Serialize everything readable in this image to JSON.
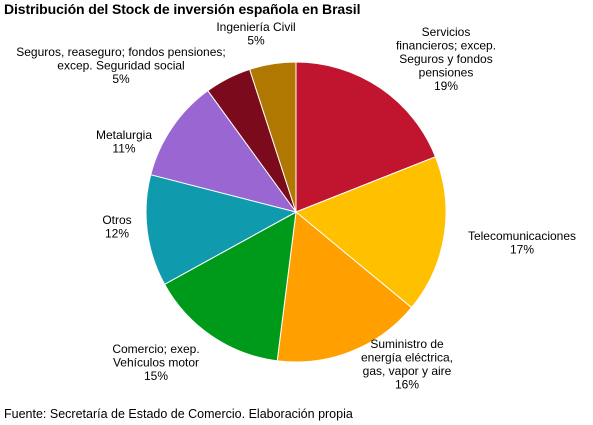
{
  "chart_data": {
    "type": "pie",
    "title": "Distribución del Stock de inversión española en Brasil",
    "source": "Fuente: Secretaría de Estado de Comercio. Elaboración propia",
    "slices": [
      {
        "lines": [
          "Servicios",
          "financieros; excep.",
          "Seguros y fondos",
          "pensiones"
        ],
        "pct_label": "19%",
        "value": 19,
        "color": "#c0142f"
      },
      {
        "lines": [
          "Telecomunicaciones"
        ],
        "pct_label": "17%",
        "value": 17,
        "color": "#ffc000"
      },
      {
        "lines": [
          "Suministro de",
          "energía eléctrica,",
          "gas, vapor y aire"
        ],
        "pct_label": "16%",
        "value": 16,
        "color": "#ff9f00"
      },
      {
        "lines": [
          "Comercio; exep.",
          "Vehículos motor"
        ],
        "pct_label": "15%",
        "value": 15,
        "color": "#009a1a"
      },
      {
        "lines": [
          "Otros"
        ],
        "pct_label": "12%",
        "value": 12,
        "color": "#0f9aad"
      },
      {
        "lines": [
          "Metalurgia"
        ],
        "pct_label": "11%",
        "value": 11,
        "color": "#9966d2"
      },
      {
        "lines": [
          "Seguros, reaseguro; fondos pensiones;",
          "excep. Seguridad social"
        ],
        "pct_label": "5%",
        "value": 5,
        "color": "#7b0a1c"
      },
      {
        "lines": [
          "Ingeniería Civil"
        ],
        "pct_label": "5%",
        "value": 5,
        "color": "#b07800"
      }
    ]
  }
}
